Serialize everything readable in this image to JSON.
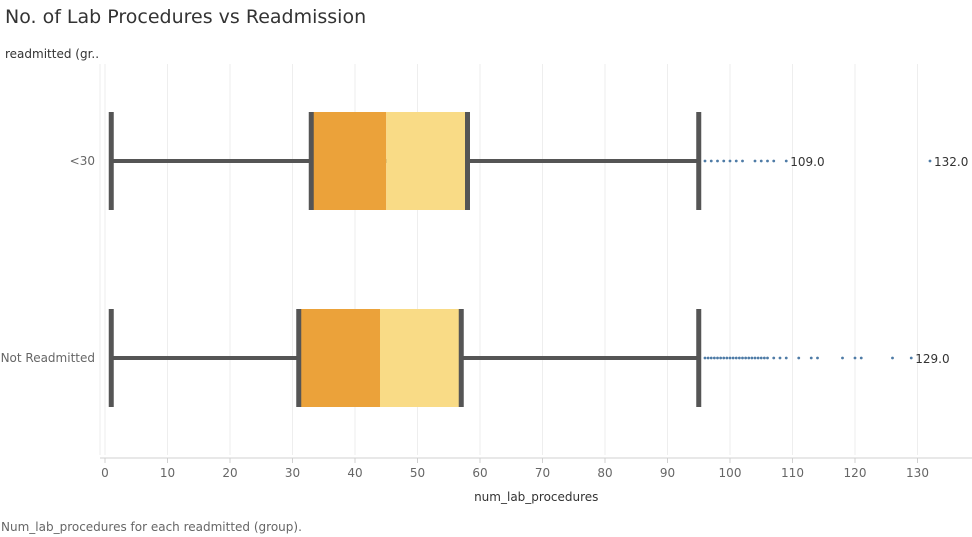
{
  "chart_data": {
    "type": "box",
    "title": "No. of Lab Procedures vs Readmission",
    "row_header": "readmitted (gr..",
    "xlabel": "num_lab_procedures",
    "caption": "Num_lab_procedures for each readmitted (group).",
    "xlim": [
      0,
      137
    ],
    "xticks": [
      0,
      10,
      20,
      30,
      40,
      50,
      60,
      70,
      80,
      90,
      100,
      110,
      120,
      130
    ],
    "categories": [
      "<30",
      "Not Readmitted"
    ],
    "boxes": [
      {
        "category": "<30",
        "whisker_low": 1,
        "q1": 33,
        "median": 45,
        "q3": 58,
        "whisker_high": 95,
        "outliers": [
          96,
          97,
          98,
          99,
          100,
          101,
          102,
          104,
          105,
          106,
          107,
          109,
          132
        ],
        "labels": [
          {
            "value": 109,
            "text": "109.0"
          },
          {
            "value": 132,
            "text": "132.0"
          }
        ]
      },
      {
        "category": "Not Readmitted",
        "whisker_low": 1,
        "q1": 31,
        "median": 44,
        "q3": 57,
        "whisker_high": 95,
        "outliers": [
          96,
          96.5,
          97,
          97.5,
          98,
          98.5,
          99,
          99.5,
          100,
          100.5,
          101,
          101.5,
          102,
          102.5,
          103,
          103.5,
          104,
          104.5,
          105,
          105.5,
          106,
          107,
          108,
          109,
          111,
          113,
          114,
          118,
          120,
          121,
          126,
          129
        ],
        "labels": [
          {
            "value": 129,
            "text": "129.0"
          }
        ]
      }
    ],
    "colors": {
      "lower_box": "#EBA23A",
      "upper_box": "#F9DB86",
      "whisker": "#555555",
      "outlier": "#4E7BA6",
      "grid": "#EEEEEE",
      "axis": "#D0D0D0"
    },
    "grid": true
  }
}
